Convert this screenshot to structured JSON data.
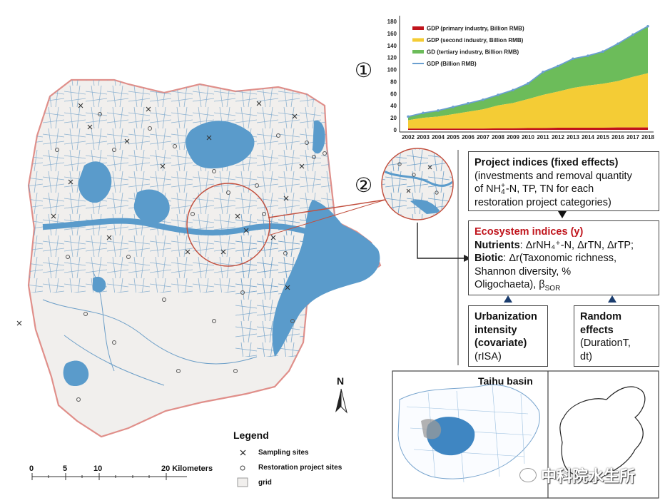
{
  "map": {
    "north_label": "N",
    "scale_ticks": [
      "0",
      "5",
      "10",
      "20 Kilometers"
    ],
    "legend": {
      "title": "Legend",
      "items": [
        "Sampling sites",
        "Restoration project sites",
        "grid"
      ]
    },
    "badges": [
      "①",
      "②"
    ],
    "colors": {
      "water": "#5a9bcb",
      "land": "#f1efed",
      "boundary": "#e08f8a",
      "zoom_circle": "#c2503f"
    }
  },
  "chart_data": {
    "type": "area",
    "x": [
      2002,
      2003,
      2004,
      2005,
      2006,
      2007,
      2008,
      2009,
      2010,
      2011,
      2012,
      2013,
      2014,
      2015,
      2016,
      2017,
      2018
    ],
    "ylim": [
      0,
      180
    ],
    "yticks": [
      0,
      20,
      40,
      60,
      80,
      100,
      120,
      140,
      160,
      180
    ],
    "legend_position": "top-left",
    "series": [
      {
        "name": "GDP (primary industry, Billion RMB)",
        "color": "#c0141c",
        "values": [
          2,
          2,
          2,
          2,
          2,
          2,
          2.5,
          2.5,
          3,
          3,
          3.5,
          3.5,
          3.5,
          3.5,
          4,
          4,
          4
        ]
      },
      {
        "name": "GDP (second industry, Billion RMB)",
        "color": "#f4cc35",
        "values": [
          14,
          18,
          20,
          24,
          28,
          32,
          38,
          42,
          48,
          55,
          60,
          66,
          70,
          73,
          77,
          84,
          90
        ]
      },
      {
        "name": "GD (tertiary industry, Billion RMB)",
        "color": "#6cbc5a",
        "values": [
          6,
          8,
          10,
          12,
          14,
          16,
          18,
          22,
          26,
          38,
          42,
          48,
          50,
          54,
          62,
          70,
          78
        ]
      },
      {
        "name": "GDP (Billion RMB)",
        "color": "#6a9fd0",
        "values": [
          22,
          28,
          32,
          38,
          44,
          50,
          58,
          66,
          77,
          96,
          106,
          118,
          123,
          130,
          143,
          158,
          172
        ]
      }
    ]
  },
  "diagram": {
    "project_box": {
      "title": "Project indices (fixed effects)",
      "line1": "(investments and removal quantity",
      "line2_pre": "of NH",
      "line2_sup": "+",
      "line2_sub": "4",
      "line2_post": "-N, TP, TN for each",
      "line3": "restoration project categories)"
    },
    "eco_box": {
      "title": "Ecosystem indices (y)",
      "nutrients_label": "Nutrients",
      "nutrients_text": ": ΔrNH₄⁺-N, ΔrTN, ΔrTP;",
      "biotic_label": "Biotic",
      "biotic_text": ": Δr(Taxonomic richness,",
      "biotic_line2": "Shannon diversity, %",
      "biotic_line3": "Oligochaeta), β",
      "biotic_sub": "SOR"
    },
    "urban_box": {
      "title_lines": [
        "Urbanization",
        "intensity",
        "(covariate)"
      ],
      "note": "(rISA)"
    },
    "random_box": {
      "title_lines": [
        "Random",
        "effects"
      ],
      "note_lines": [
        "(DurationT,",
        "dt)"
      ]
    }
  },
  "inset": {
    "title": "Taihu basin",
    "watermark": "中科院水生所"
  }
}
